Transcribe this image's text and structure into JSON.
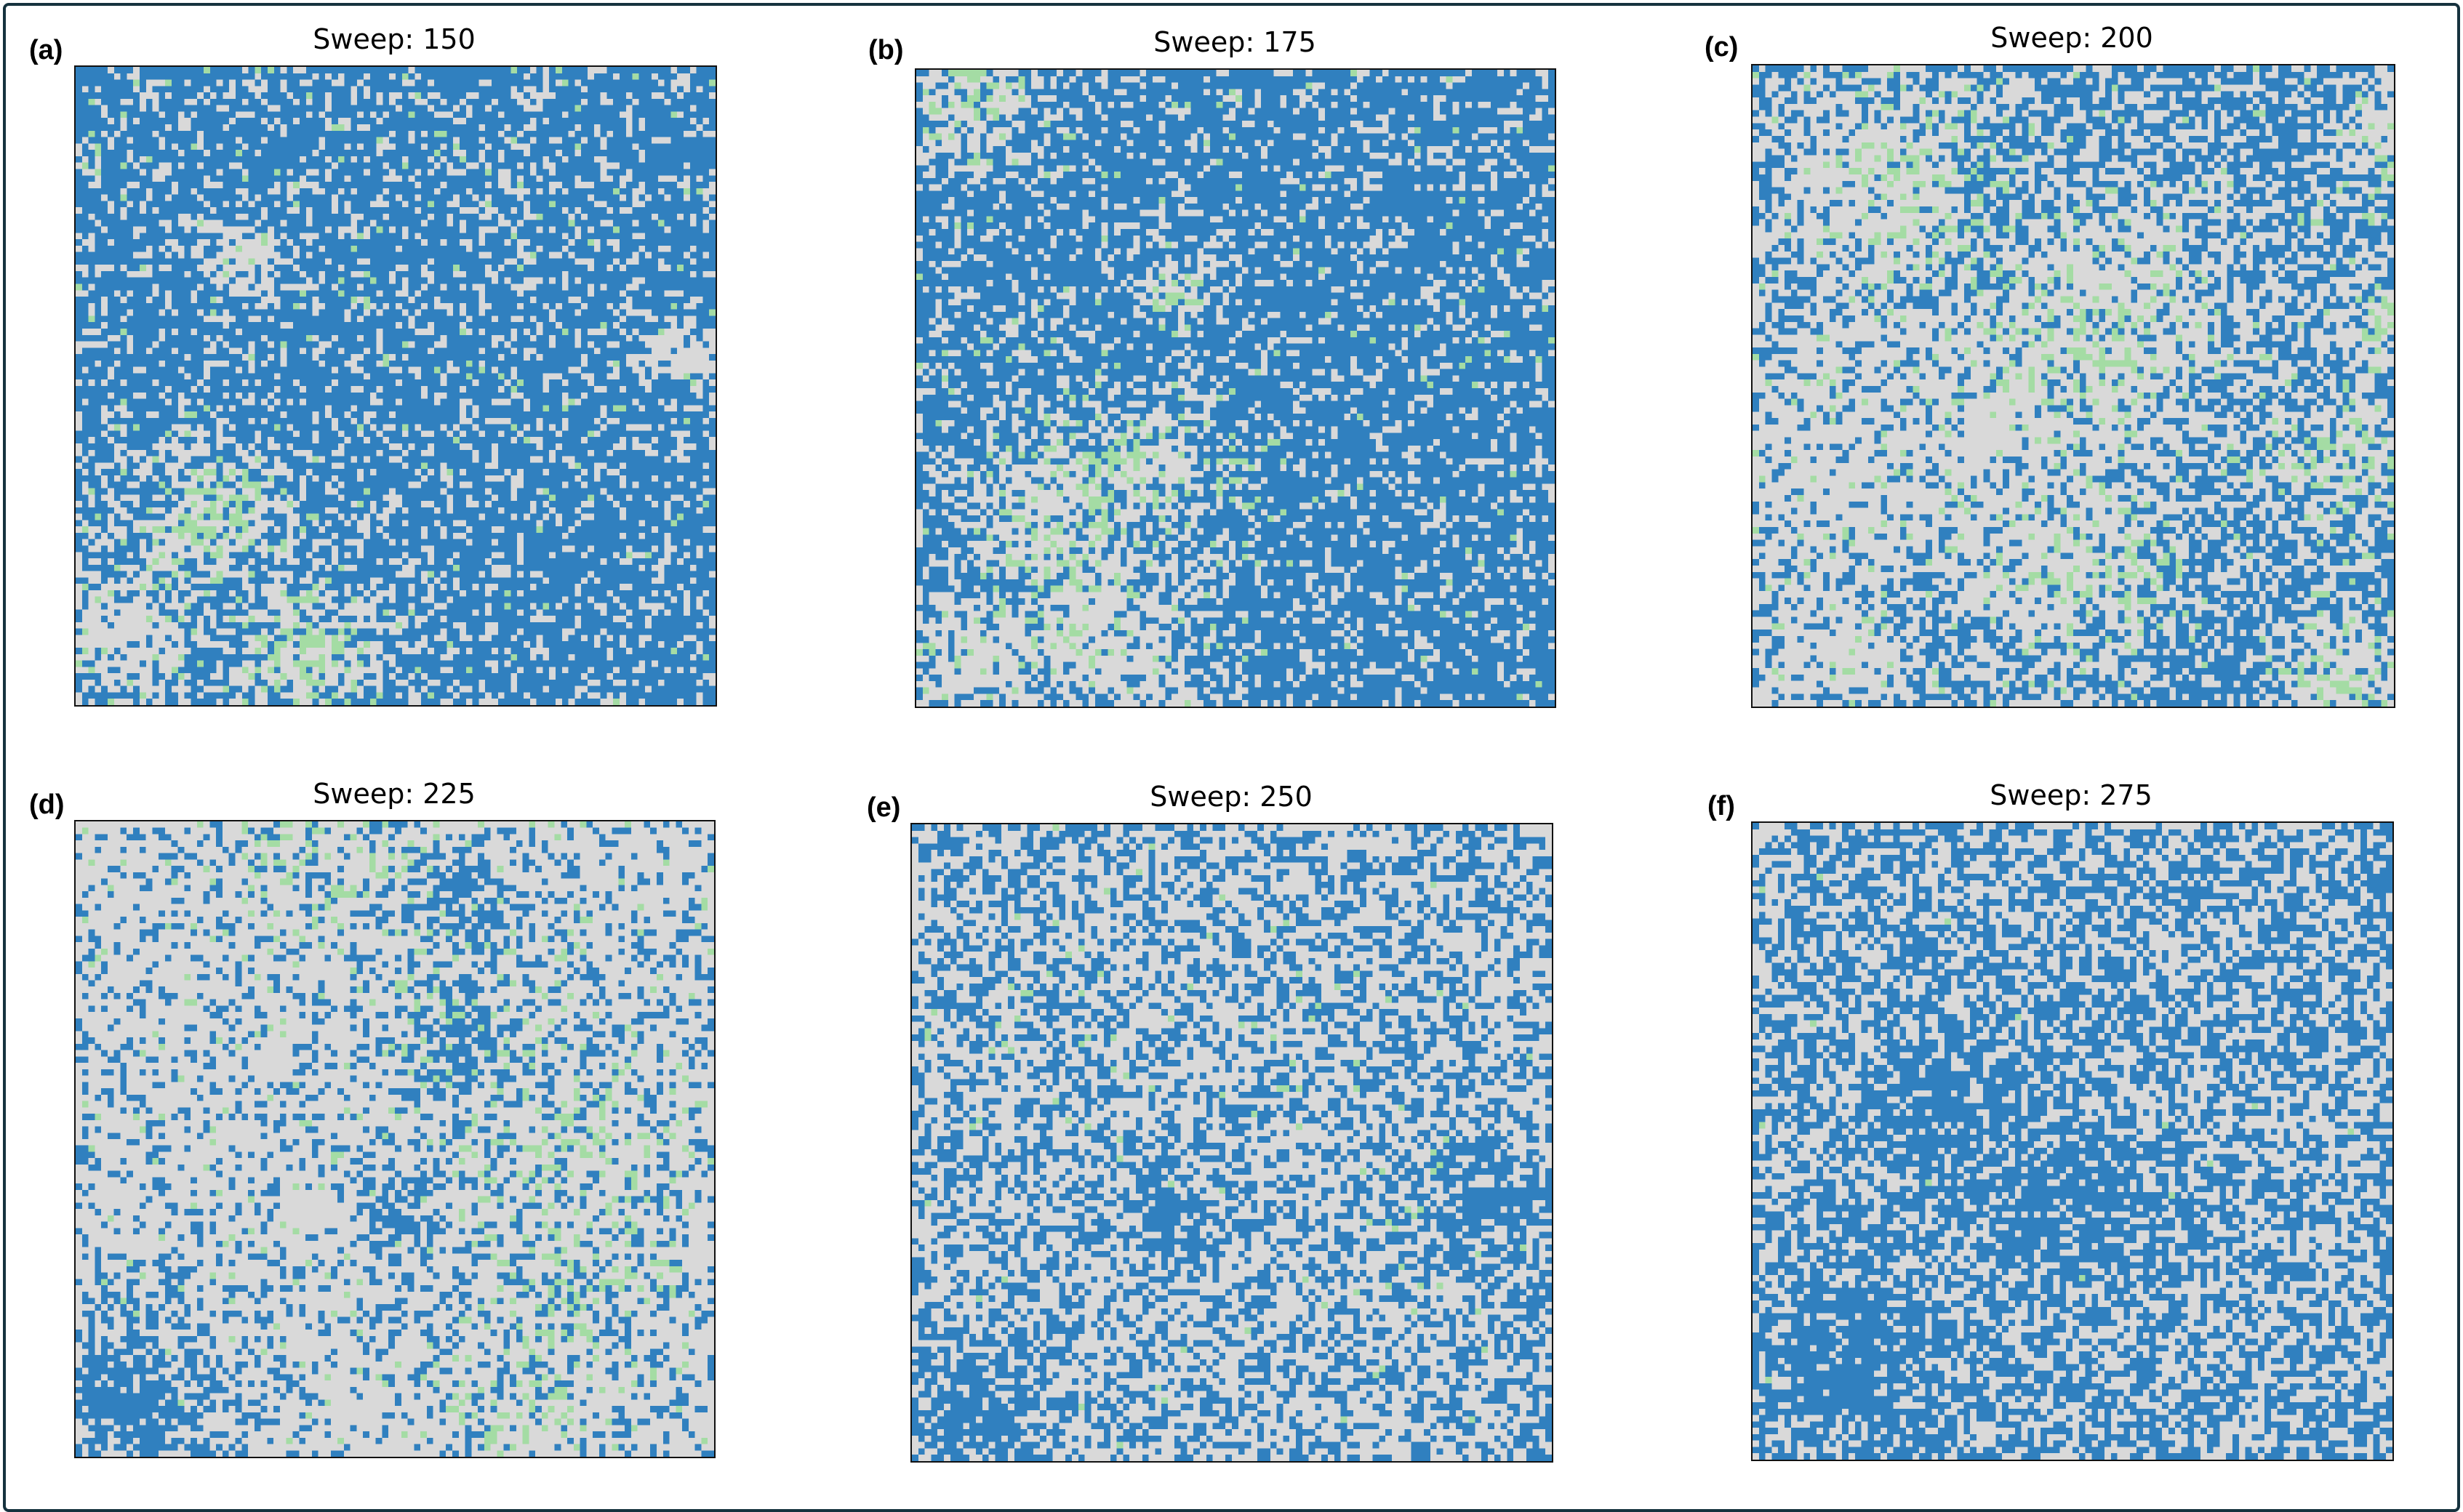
{
  "chart_data": [
    {
      "type": "heatmap",
      "panel": "(a)",
      "title": "Sweep: 150",
      "grid_size": [
        100,
        100
      ],
      "dominant_state": "blue",
      "green_clusters": 3,
      "colors": {
        "empty": "#d9d9d9",
        "blue": "#3080bf",
        "green": "#a4dca4"
      }
    },
    {
      "type": "heatmap",
      "panel": "(b)",
      "title": "Sweep: 175",
      "grid_size": [
        100,
        100
      ],
      "dominant_state": "blue",
      "green_clusters": 3,
      "colors": {
        "empty": "#d9d9d9",
        "blue": "#3080bf",
        "green": "#a4dca4"
      }
    },
    {
      "type": "heatmap",
      "panel": "(c)",
      "title": "Sweep: 200",
      "grid_size": [
        100,
        100
      ],
      "dominant_state": "mixed",
      "green_clusters": 5,
      "colors": {
        "empty": "#d9d9d9",
        "blue": "#3080bf",
        "green": "#a4dca4"
      }
    },
    {
      "type": "heatmap",
      "panel": "(d)",
      "title": "Sweep: 225",
      "grid_size": [
        100,
        100
      ],
      "dominant_state": "empty",
      "green_clusters": 4,
      "colors": {
        "empty": "#d9d9d9",
        "blue": "#3080bf",
        "green": "#a4dca4"
      }
    },
    {
      "type": "heatmap",
      "panel": "(e)",
      "title": "Sweep: 250",
      "grid_size": [
        100,
        100
      ],
      "dominant_state": "empty",
      "green_clusters": 0,
      "colors": {
        "empty": "#d9d9d9",
        "blue": "#3080bf",
        "green": "#a4dca4"
      }
    },
    {
      "type": "heatmap",
      "panel": "(f)",
      "title": "Sweep: 275",
      "grid_size": [
        100,
        100
      ],
      "dominant_state": "mixed",
      "green_clusters": 0,
      "colors": {
        "empty": "#d9d9d9",
        "blue": "#3080bf",
        "green": "#a4dca4"
      }
    }
  ]
}
